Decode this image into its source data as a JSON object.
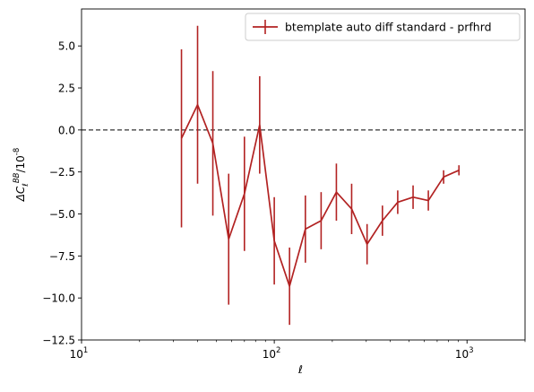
{
  "chart_data": {
    "type": "line",
    "title": "",
    "xlabel": "ℓ",
    "ylabel": "ΔC_ℓ^{BB}/10^{-8}",
    "xscale": "log",
    "xlim": [
      10,
      2000
    ],
    "ylim": [
      -12.5,
      7.2
    ],
    "grid": false,
    "legend_position": "top-right",
    "xticks": [
      {
        "value": 10,
        "base": "10",
        "exp": "1"
      },
      {
        "value": 100,
        "base": "10",
        "exp": "2"
      },
      {
        "value": 1000,
        "base": "10",
        "exp": "3"
      }
    ],
    "yticks": [
      {
        "value": 5.0,
        "label": "5.0"
      },
      {
        "value": 2.5,
        "label": "2.5"
      },
      {
        "value": 0.0,
        "label": "0.0"
      },
      {
        "value": -2.5,
        "label": "−2.5"
      },
      {
        "value": -5.0,
        "label": "−5.0"
      },
      {
        "value": -7.5,
        "label": "−7.5"
      },
      {
        "value": -10.0,
        "label": "−10.0"
      },
      {
        "value": -12.5,
        "label": "−12.5"
      }
    ],
    "reference_line": {
      "y": 0,
      "style": "dashed",
      "color": "#333333"
    },
    "series": [
      {
        "name": "btemplate auto diff standard - prfhrd",
        "color": "#b22222",
        "points": [
          {
            "x": 33,
            "y": -0.5,
            "err": 5.3
          },
          {
            "x": 40,
            "y": 1.5,
            "err": 4.7
          },
          {
            "x": 48,
            "y": -0.8,
            "err": 4.3
          },
          {
            "x": 58,
            "y": -6.5,
            "err": 3.9
          },
          {
            "x": 70,
            "y": -3.8,
            "err": 3.4
          },
          {
            "x": 84,
            "y": 0.3,
            "err": 2.9
          },
          {
            "x": 100,
            "y": -6.6,
            "err": 2.6
          },
          {
            "x": 120,
            "y": -9.3,
            "err": 2.3
          },
          {
            "x": 145,
            "y": -5.9,
            "err": 2.0
          },
          {
            "x": 175,
            "y": -5.4,
            "err": 1.7
          },
          {
            "x": 210,
            "y": -3.7,
            "err": 1.7
          },
          {
            "x": 252,
            "y": -4.7,
            "err": 1.5
          },
          {
            "x": 303,
            "y": -6.8,
            "err": 1.2
          },
          {
            "x": 364,
            "y": -5.4,
            "err": 0.9
          },
          {
            "x": 437,
            "y": -4.3,
            "err": 0.7
          },
          {
            "x": 525,
            "y": -4.0,
            "err": 0.7
          },
          {
            "x": 630,
            "y": -4.2,
            "err": 0.6
          },
          {
            "x": 756,
            "y": -2.8,
            "err": 0.4
          },
          {
            "x": 908,
            "y": -2.4,
            "err": 0.3
          }
        ]
      }
    ]
  }
}
